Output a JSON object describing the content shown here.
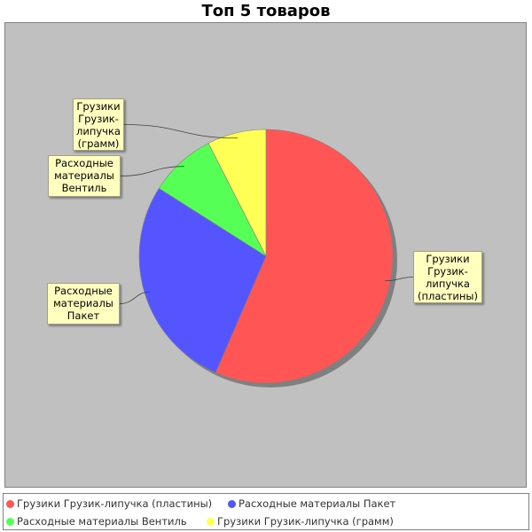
{
  "chart_data": {
    "type": "pie",
    "title": "Топ 5 товаров",
    "categories": [
      "Грузики Грузик-липучка (пластины)",
      "Расходные материалы Пакет",
      "Расходные материалы Вентиль",
      "Грузики Грузик-липучка (грамм)"
    ],
    "values": [
      56.5,
      27.5,
      8.5,
      7.5
    ],
    "colors": [
      "#ff5555",
      "#5555ff",
      "#55ff55",
      "#ffff55"
    ],
    "labels": [
      "Грузики\nГрузик-\nлипучка\n(пластины)",
      "Расходные\nматериалы\nПакет",
      "Расходные\nматериалы\nВентиль",
      "Грузики\nГрузик-\nлипучка\n(грамм)"
    ],
    "legend_position": "bottom",
    "background": "#c0c0c0"
  }
}
